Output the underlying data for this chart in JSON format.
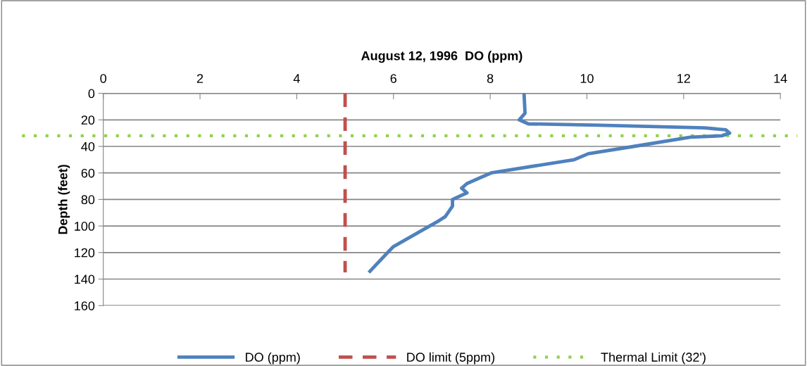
{
  "chart_data": {
    "type": "line",
    "title": "August 12, 1996  DO (ppm)",
    "ylabel": "Depth (feet)",
    "xlim": [
      0,
      14
    ],
    "xticks": [
      0,
      2,
      4,
      6,
      8,
      10,
      12,
      14
    ],
    "ylim": [
      160,
      0
    ],
    "yticks": [
      0,
      20,
      40,
      60,
      80,
      100,
      120,
      140,
      160
    ],
    "grid": "y",
    "legend": "bottom",
    "marker": "none",
    "series": [
      {
        "name": "DO (ppm)",
        "color": "#4f81bd",
        "line_style": "solid",
        "x": [
          8.7,
          8.72,
          8.6,
          8.79,
          10.25,
          12.43,
          12.87,
          12.95,
          12.79,
          12.14,
          10.97,
          10.03,
          9.74,
          8.02,
          7.8,
          7.52,
          7.41,
          7.52,
          7.22,
          7.22,
          7.07,
          6.94,
          6.0,
          5.88,
          5.49
        ],
        "values": [
          0,
          15,
          20,
          23,
          24,
          26,
          27.5,
          30,
          32,
          33,
          40,
          45.5,
          50,
          60,
          63.5,
          68,
          71.5,
          75,
          80,
          85,
          93,
          96,
          115.5,
          120,
          135
        ]
      },
      {
        "name": "DO limit (5ppm)",
        "color": "#c0504d",
        "line_style": "dashed",
        "x": [
          5,
          5
        ],
        "values": [
          0,
          135
        ]
      }
    ],
    "ref_lines": [
      {
        "axis": "y",
        "value": 32,
        "label": "Thermal Limit (32')",
        "color": "#92d050",
        "line_style": "dotted"
      }
    ]
  }
}
